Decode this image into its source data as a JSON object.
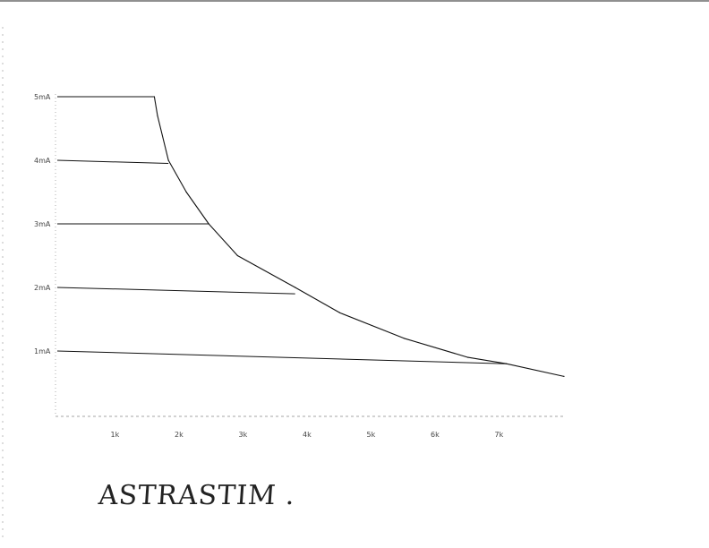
{
  "chart_data": {
    "type": "line",
    "title": "",
    "xlabel": "",
    "ylabel": "",
    "x_tick_labels": [
      "1k",
      "2k",
      "3k",
      "4k",
      "5k",
      "6k",
      "7k"
    ],
    "x_ticks": [
      1,
      2,
      3,
      4,
      5,
      6,
      7
    ],
    "y_tick_labels": [
      "1mA",
      "2mA",
      "3mA",
      "4mA",
      "5mA"
    ],
    "y_ticks": [
      1,
      2,
      3,
      4,
      5
    ],
    "xlim": [
      0,
      8.1
    ],
    "ylim": [
      0,
      5.5
    ],
    "grid": false,
    "series": [
      {
        "x": [
          1.6,
          1.65,
          1.82,
          2.1,
          2.45,
          2.9,
          3.8,
          4.5,
          5.5,
          6.5,
          7.1,
          8.0
        ],
        "y": [
          5,
          4.7,
          4.0,
          3.5,
          3.0,
          2.5,
          2.0,
          1.6,
          1.2,
          0.9,
          0.8,
          0.6
        ]
      }
    ],
    "level_lines": [
      {
        "label": "5mA",
        "x": [
          0,
          1.6
        ],
        "y": [
          5,
          5
        ]
      },
      {
        "label": "4mA",
        "x": [
          0,
          1.82
        ],
        "y": [
          4,
          3.95
        ]
      },
      {
        "label": "3mA",
        "x": [
          0,
          2.45
        ],
        "y": [
          3,
          3
        ]
      },
      {
        "label": "2mA",
        "x": [
          0,
          3.8
        ],
        "y": [
          2,
          1.9
        ]
      },
      {
        "label": "1mA",
        "x": [
          0,
          7.1
        ],
        "y": [
          1,
          0.8
        ]
      }
    ],
    "color": "#111111"
  },
  "signature": "ASTRASTIM ."
}
